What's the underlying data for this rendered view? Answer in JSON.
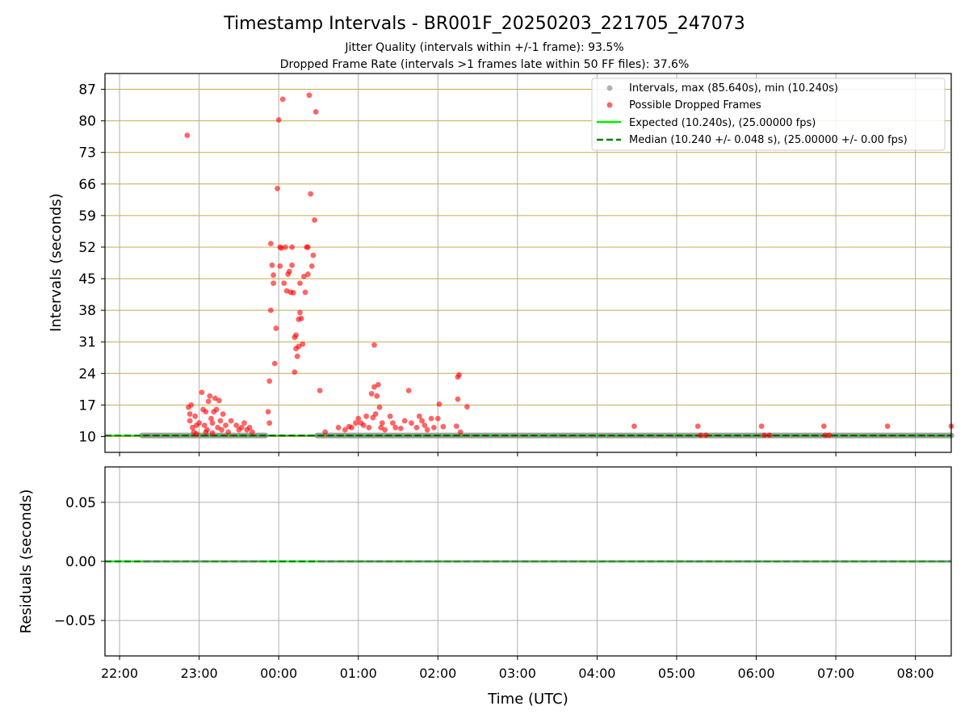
{
  "figure": {
    "title": "Timestamp Intervals - BR001F_20250203_221705_247073",
    "subtitle1": "Jitter Quality (intervals within +/-1 frame): 93.5%",
    "subtitle2": "Dropped Frame Rate (intervals >1 frames late within 50 FF files): 37.6%"
  },
  "colors": {
    "dropped": "#ff0000",
    "intervals": "#808080",
    "expected": "#00ee00",
    "median": "#008000",
    "hgrid_top": "#c8a850",
    "grid": "#b0b0b0"
  },
  "chart_data": [
    {
      "type": "scatter",
      "panel": "top",
      "ylabel": "Intervals (seconds)",
      "xlim": [
        "21:49",
        "08:27"
      ],
      "ylim": [
        6.5,
        90.5
      ],
      "xticks": [
        "22:00",
        "23:00",
        "00:00",
        "01:00",
        "02:00",
        "03:00",
        "04:00",
        "05:00",
        "06:00",
        "07:00",
        "08:00"
      ],
      "yticks": [
        "10",
        "17",
        "24",
        "31",
        "38",
        "45",
        "52",
        "59",
        "66",
        "73",
        "80",
        "87"
      ],
      "legend_position": "top-right",
      "legend": [
        "Intervals, max (85.640s), min (10.240s)",
        "Possible Dropped Frames",
        "Expected (10.240s), (25.00000 fps)",
        "Median (10.240 +/- 0.048 s), (25.00000 +/- 0.00 fps)"
      ],
      "intervals_segments": [
        {
          "from": "22:17",
          "to": "23:50",
          "value": 10.24
        },
        {
          "from": "00:29",
          "to": "08:27",
          "value": 10.24
        }
      ],
      "expected": 10.24,
      "median": 10.24,
      "series": [
        {
          "name": "Possible Dropped Frames",
          "points": [
            [
              "22:51",
              76.8
            ],
            [
              "22:52",
              16.5
            ],
            [
              "22:53",
              15.0
            ],
            [
              "22:54",
              17.0
            ],
            [
              "22:53",
              13.5
            ],
            [
              "22:55",
              12.0
            ],
            [
              "22:56",
              11.0
            ],
            [
              "22:57",
              14.5
            ],
            [
              "22:58",
              12.5
            ],
            [
              "23:00",
              13.0
            ],
            [
              "23:02",
              19.8
            ],
            [
              "23:03",
              16.0
            ],
            [
              "23:04",
              12.5
            ],
            [
              "23:05",
              15.5
            ],
            [
              "23:06",
              11.5
            ],
            [
              "23:07",
              17.8
            ],
            [
              "23:08",
              19.0
            ],
            [
              "23:09",
              14.0
            ],
            [
              "23:10",
              13.0
            ],
            [
              "23:11",
              15.5
            ],
            [
              "23:12",
              18.5
            ],
            [
              "23:13",
              16.0
            ],
            [
              "23:14",
              12.0
            ],
            [
              "23:15",
              18.0
            ],
            [
              "23:16",
              13.5
            ],
            [
              "23:17",
              11.5
            ],
            [
              "23:18",
              15.0
            ],
            [
              "23:20",
              12.5
            ],
            [
              "23:22",
              11.0
            ],
            [
              "23:24",
              13.5
            ],
            [
              "23:28",
              12.5
            ],
            [
              "23:30",
              11.5
            ],
            [
              "23:32",
              12.0
            ],
            [
              "23:34",
              13.0
            ],
            [
              "23:36",
              11.5
            ],
            [
              "23:38",
              12.0
            ],
            [
              "23:40",
              11.0
            ],
            [
              "22:58",
              10.6
            ],
            [
              "23:05",
              11.0
            ],
            [
              "23:10",
              10.8
            ],
            [
              "23:52",
              15.5
            ],
            [
              "23:53",
              13.0
            ],
            [
              "23:53",
              22.3
            ],
            [
              "23:54",
              38.0
            ],
            [
              "23:54",
              52.8
            ],
            [
              "23:55",
              48.0
            ],
            [
              "23:56",
              45.8
            ],
            [
              "23:56",
              44.0
            ],
            [
              "23:57",
              26.2
            ],
            [
              "23:58",
              34.0
            ],
            [
              "23:59",
              65.0
            ],
            [
              "00:00",
              80.2
            ],
            [
              "00:01",
              52.0
            ],
            [
              "00:01",
              47.8
            ],
            [
              "00:02",
              51.8
            ],
            [
              "00:03",
              84.8
            ],
            [
              "00:04",
              44.0
            ],
            [
              "00:05",
              52.0
            ],
            [
              "00:06",
              42.3
            ],
            [
              "00:07",
              46.0
            ],
            [
              "00:08",
              46.6
            ],
            [
              "00:09",
              42.0
            ],
            [
              "00:10",
              48.0
            ],
            [
              "00:10",
              52.0
            ],
            [
              "00:11",
              41.9
            ],
            [
              "00:12",
              24.3
            ],
            [
              "00:12",
              32.0
            ],
            [
              "00:13",
              29.5
            ],
            [
              "00:13",
              32.5
            ],
            [
              "00:14",
              27.8
            ],
            [
              "00:15",
              30.0
            ],
            [
              "00:15",
              36.0
            ],
            [
              "00:16",
              44.0
            ],
            [
              "00:16",
              37.5
            ],
            [
              "00:17",
              36.2
            ],
            [
              "00:18",
              30.5
            ],
            [
              "00:19",
              45.5
            ],
            [
              "00:20",
              42.0
            ],
            [
              "00:21",
              52.0
            ],
            [
              "00:22",
              46.0
            ],
            [
              "00:22",
              52.0
            ],
            [
              "00:23",
              85.7
            ],
            [
              "00:24",
              63.8
            ],
            [
              "00:25",
              47.8
            ],
            [
              "00:26",
              50.2
            ],
            [
              "00:27",
              58.0
            ],
            [
              "00:28",
              82.0
            ],
            [
              "00:31",
              20.2
            ],
            [
              "00:35",
              11.0
            ],
            [
              "00:45",
              12.0
            ],
            [
              "00:50",
              11.5
            ],
            [
              "00:53",
              12.2
            ],
            [
              "00:55",
              12.0
            ],
            [
              "00:58",
              13.0
            ],
            [
              "01:00",
              14.0
            ],
            [
              "01:02",
              13.0
            ],
            [
              "01:04",
              12.5
            ],
            [
              "01:06",
              14.5
            ],
            [
              "01:08",
              12.0
            ],
            [
              "01:10",
              19.5
            ],
            [
              "01:11",
              14.2
            ],
            [
              "01:12",
              21.0
            ],
            [
              "01:12",
              30.3
            ],
            [
              "01:13",
              15.0
            ],
            [
              "01:14",
              19.0
            ],
            [
              "01:15",
              21.5
            ],
            [
              "01:16",
              16.5
            ],
            [
              "01:17",
              12.0
            ],
            [
              "01:18",
              13.0
            ],
            [
              "01:20",
              11.5
            ],
            [
              "01:24",
              14.5
            ],
            [
              "01:26",
              13.0
            ],
            [
              "01:28",
              12.0
            ],
            [
              "01:32",
              11.8
            ],
            [
              "01:35",
              13.5
            ],
            [
              "01:38",
              20.2
            ],
            [
              "01:40",
              13.0
            ],
            [
              "01:44",
              12.0
            ],
            [
              "01:46",
              14.5
            ],
            [
              "01:48",
              13.5
            ],
            [
              "01:50",
              12.5
            ],
            [
              "01:52",
              11.5
            ],
            [
              "01:55",
              14.0
            ],
            [
              "01:57",
              12.0
            ],
            [
              "02:00",
              14.0
            ],
            [
              "02:01",
              17.2
            ],
            [
              "02:04",
              12.2
            ],
            [
              "02:14",
              12.3
            ],
            [
              "02:15",
              18.3
            ],
            [
              "02:15",
              23.2
            ],
            [
              "02:16",
              23.7
            ],
            [
              "02:17",
              11.0
            ],
            [
              "02:22",
              16.6
            ],
            [
              "04:28",
              12.3
            ],
            [
              "05:16",
              12.3
            ],
            [
              "05:18",
              10.3
            ],
            [
              "05:22",
              10.3
            ],
            [
              "06:04",
              12.3
            ],
            [
              "06:06",
              10.3
            ],
            [
              "06:10",
              10.3
            ],
            [
              "06:51",
              12.3
            ],
            [
              "06:52",
              10.3
            ],
            [
              "06:55",
              10.3
            ],
            [
              "07:39",
              12.3
            ],
            [
              "08:27",
              12.3
            ]
          ]
        }
      ]
    },
    {
      "type": "line",
      "panel": "bottom",
      "xlabel": "Time (UTC)",
      "ylabel": "Residuals (seconds)",
      "xlim": [
        "21:49",
        "08:27"
      ],
      "ylim": [
        -0.08,
        0.08
      ],
      "xticks": [
        "22:00",
        "23:00",
        "00:00",
        "01:00",
        "02:00",
        "03:00",
        "04:00",
        "05:00",
        "06:00",
        "07:00",
        "08:00"
      ],
      "yticks": [
        "0.05",
        "0.00",
        "−0.05"
      ],
      "series": [
        {
          "name": "Expected",
          "values": [
            0.0
          ]
        },
        {
          "name": "Median",
          "values": [
            0.0
          ]
        }
      ]
    }
  ]
}
